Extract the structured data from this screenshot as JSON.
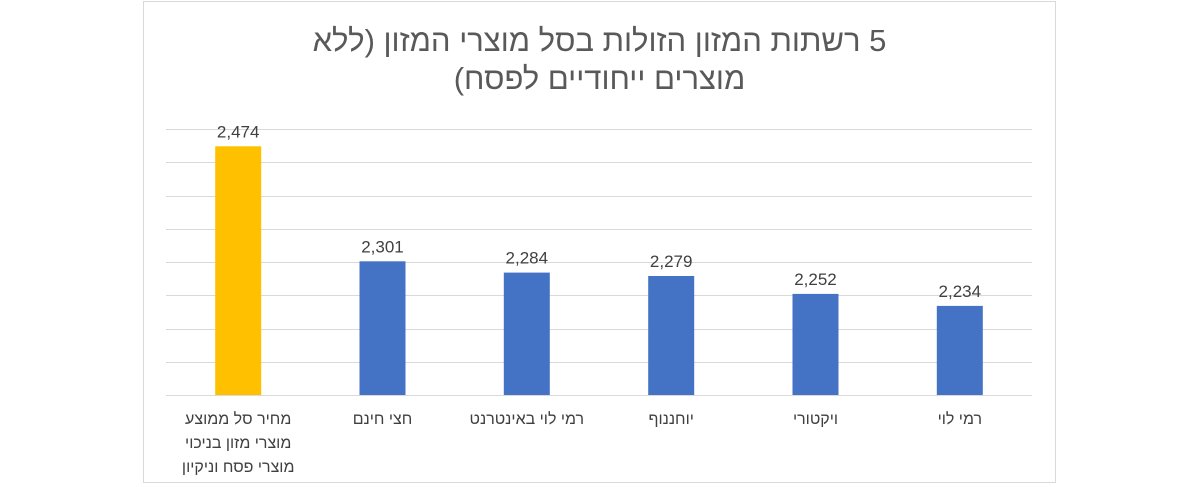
{
  "chart_data": {
    "type": "bar",
    "title_lines": [
      "5 רשתות המזון הזולות בסל מוצרי המזון (ללא",
      "מוצרים ייחודיים לפסח)"
    ],
    "categories": [
      [
        "רמי לוי"
      ],
      [
        "ויקטורי"
      ],
      [
        "יוחננוף"
      ],
      [
        "רמי לוי באינטרנט"
      ],
      [
        "חצי חינם"
      ],
      [
        "מחיר סל ממוצע",
        "מוצרי מזון בניכוי",
        "מוצרי פסח וניקיון"
      ]
    ],
    "values": [
      2234,
      2252,
      2279,
      2284,
      2301,
      2474
    ],
    "value_labels": [
      "2,234",
      "2,252",
      "2,279",
      "2,284",
      "2,301",
      "2,474"
    ],
    "colors": [
      "#4472C4",
      "#4472C4",
      "#4472C4",
      "#4472C4",
      "#4472C4",
      "#FFC000"
    ],
    "ylim": [
      2100,
      2500
    ],
    "y_gridline_step": 50,
    "y_axis_labels_shown": false,
    "grid": true,
    "legend": "none"
  }
}
